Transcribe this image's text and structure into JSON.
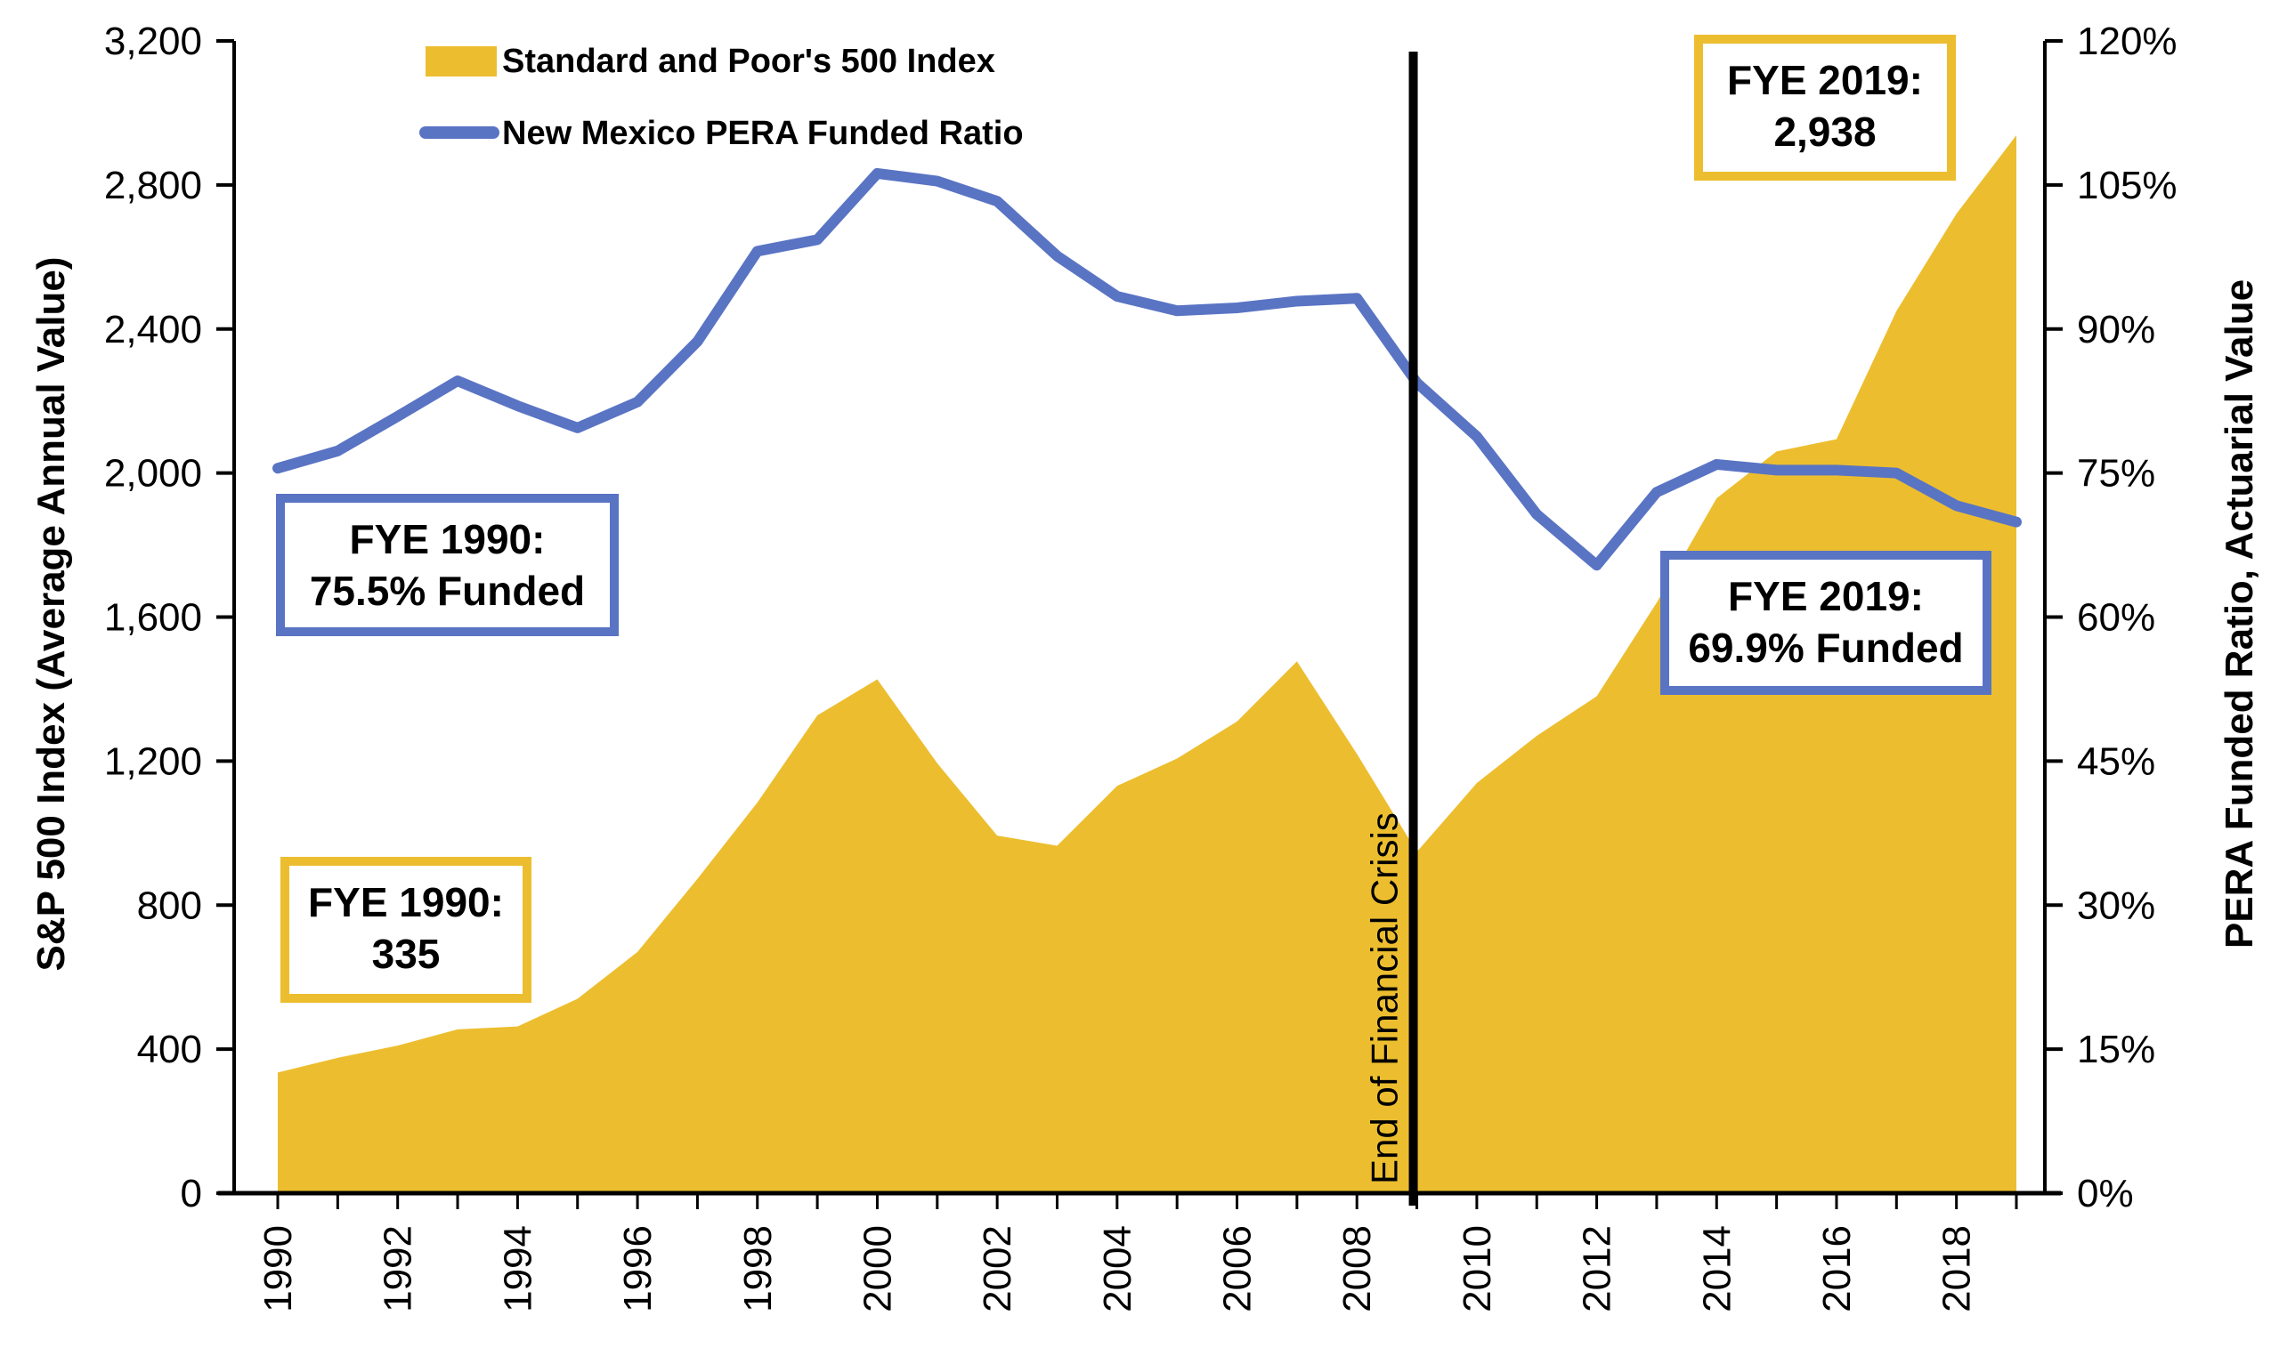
{
  "chart_data": {
    "type": "area+line",
    "title": "",
    "x": [
      1990,
      1991,
      1992,
      1993,
      1994,
      1995,
      1996,
      1997,
      1998,
      1999,
      2000,
      2001,
      2002,
      2003,
      2004,
      2005,
      2006,
      2007,
      2008,
      2009,
      2010,
      2011,
      2012,
      2013,
      2014,
      2015,
      2016,
      2017,
      2018,
      2019
    ],
    "x_tick_labels": [
      "1990",
      "1992",
      "1994",
      "1996",
      "1998",
      "2000",
      "2002",
      "2004",
      "2006",
      "2008",
      "2010",
      "2012",
      "2014",
      "2016",
      "2018"
    ],
    "series": [
      {
        "name": "Standard and Poor's 500 Index",
        "type": "area",
        "axis": "left",
        "color": "#ECBE2F",
        "values": [
          335,
          376,
          410,
          455,
          463,
          540,
          670,
          873,
          1085,
          1327,
          1427,
          1194,
          993,
          965,
          1131,
          1207,
          1310,
          1477,
          1220,
          948,
          1139,
          1270,
          1380,
          1640,
          1930,
          2060,
          2094,
          2450,
          2720,
          2938
        ]
      },
      {
        "name": "New Mexico PERA Funded Ratio",
        "type": "line",
        "axis": "right",
        "color": "#5A74C4",
        "values": [
          75.5,
          77.3,
          80.9,
          84.6,
          82.0,
          79.7,
          82.4,
          88.7,
          98.1,
          99.3,
          106.2,
          105.4,
          103.3,
          97.6,
          93.4,
          91.9,
          92.2,
          92.9,
          93.2,
          84.4,
          78.8,
          70.7,
          65.4,
          73.0,
          75.9,
          75.3,
          75.3,
          75.0,
          71.6,
          69.9
        ]
      }
    ],
    "y_left": {
      "label": "S&P 500 Index (Average Annual Value)",
      "range": [
        0,
        3200
      ],
      "ticks": [
        0,
        400,
        800,
        1200,
        1600,
        2000,
        2400,
        2800,
        3200
      ],
      "tick_labels": [
        "0",
        "400",
        "800",
        "1,200",
        "1,600",
        "2,000",
        "2,400",
        "2,800",
        "3,200"
      ]
    },
    "y_right": {
      "label": "PERA Funded Ratio, Actuarial Value",
      "range": [
        0,
        120
      ],
      "ticks": [
        0,
        15,
        30,
        45,
        60,
        75,
        90,
        105,
        120
      ],
      "tick_labels": [
        "0%",
        "15%",
        "30%",
        "45%",
        "60%",
        "75%",
        "90%",
        "105%",
        "120%"
      ]
    },
    "grid": false,
    "legend": {
      "placement": "top-left",
      "entries": [
        "Standard and Poor's 500 Index",
        "New Mexico PERA Funded Ratio"
      ]
    },
    "reference_line": {
      "x": 2009,
      "label": "End of Financial Crisis"
    },
    "annotations": [
      {
        "id": "sp-1990",
        "series": "Standard and Poor's 500 Index",
        "lines": [
          "FYE 1990:",
          "335"
        ],
        "border_color": "#ECBE2F"
      },
      {
        "id": "sp-2019",
        "series": "Standard and Poor's 500 Index",
        "lines": [
          "FYE 2019:",
          "2,938"
        ],
        "border_color": "#ECBE2F"
      },
      {
        "id": "pera-1990",
        "series": "New Mexico PERA Funded Ratio",
        "lines": [
          "FYE 1990:",
          "75.5% Funded"
        ],
        "border_color": "#5A74C4"
      },
      {
        "id": "pera-2019",
        "series": "New Mexico PERA Funded Ratio",
        "lines": [
          "FYE 2019:",
          "69.9% Funded"
        ],
        "border_color": "#5A74C4"
      }
    ]
  }
}
